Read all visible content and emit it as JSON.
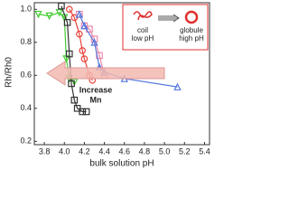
{
  "chart_data": {
    "type": "line",
    "x_label": "bulk solution pH",
    "y_label": "Rh/Rh0",
    "annotations": {
      "arrow_lines": [
        "Increase",
        "Mn"
      ],
      "coil": [
        "coil",
        "low pH"
      ],
      "globule": [
        "globule",
        "high pH"
      ]
    },
    "xlim": [
      3.7,
      5.45
    ],
    "ylim": [
      0.18,
      1.04
    ],
    "xticks": [
      3.8,
      {
        "value": 4,
        "label": "4.0"
      },
      4.2,
      4.4,
      4.6,
      4.8,
      {
        "value": 5,
        "label": "5.0"
      },
      5.2,
      5.4
    ],
    "yticks": [
      0.2,
      0.4,
      0.6,
      0.8,
      {
        "value": 1,
        "label": "1.0"
      }
    ],
    "series": [
      {
        "color": "#44cc33",
        "marker": "triangle-down",
        "x": [
          3.74,
          3.85,
          3.95,
          4.0,
          4.02,
          4.05,
          4.1
        ],
        "values": [
          0.97,
          0.96,
          0.98,
          0.95,
          0.7,
          0.58,
          0.56
        ]
      },
      {
        "color": "#333333",
        "marker": "square",
        "x": [
          3.97,
          4.03,
          4.05,
          4.07,
          4.1,
          4.13,
          4.18,
          4.22
        ],
        "values": [
          1.02,
          0.92,
          0.73,
          0.55,
          0.45,
          0.4,
          0.38,
          0.38
        ]
      },
      {
        "color": "#e8453c",
        "marker": "circle",
        "x": [
          4.05,
          4.1,
          4.15,
          4.18,
          4.2,
          4.25,
          4.28
        ],
        "values": [
          1.0,
          0.95,
          0.85,
          0.75,
          0.7,
          0.6,
          0.57
        ]
      },
      {
        "color": "#ee88aa",
        "marker": "square",
        "x": [
          4.15,
          4.2,
          4.25,
          4.3,
          4.35,
          4.4
        ],
        "values": [
          0.97,
          0.9,
          0.88,
          0.82,
          0.72,
          0.6
        ]
      },
      {
        "color": "#5577dd",
        "marker": "triangle-up",
        "x": [
          4.15,
          4.2,
          4.3,
          4.35,
          4.4,
          4.6,
          5.13
        ],
        "values": [
          0.97,
          0.9,
          0.8,
          0.65,
          0.62,
          0.58,
          0.53
        ]
      }
    ]
  }
}
